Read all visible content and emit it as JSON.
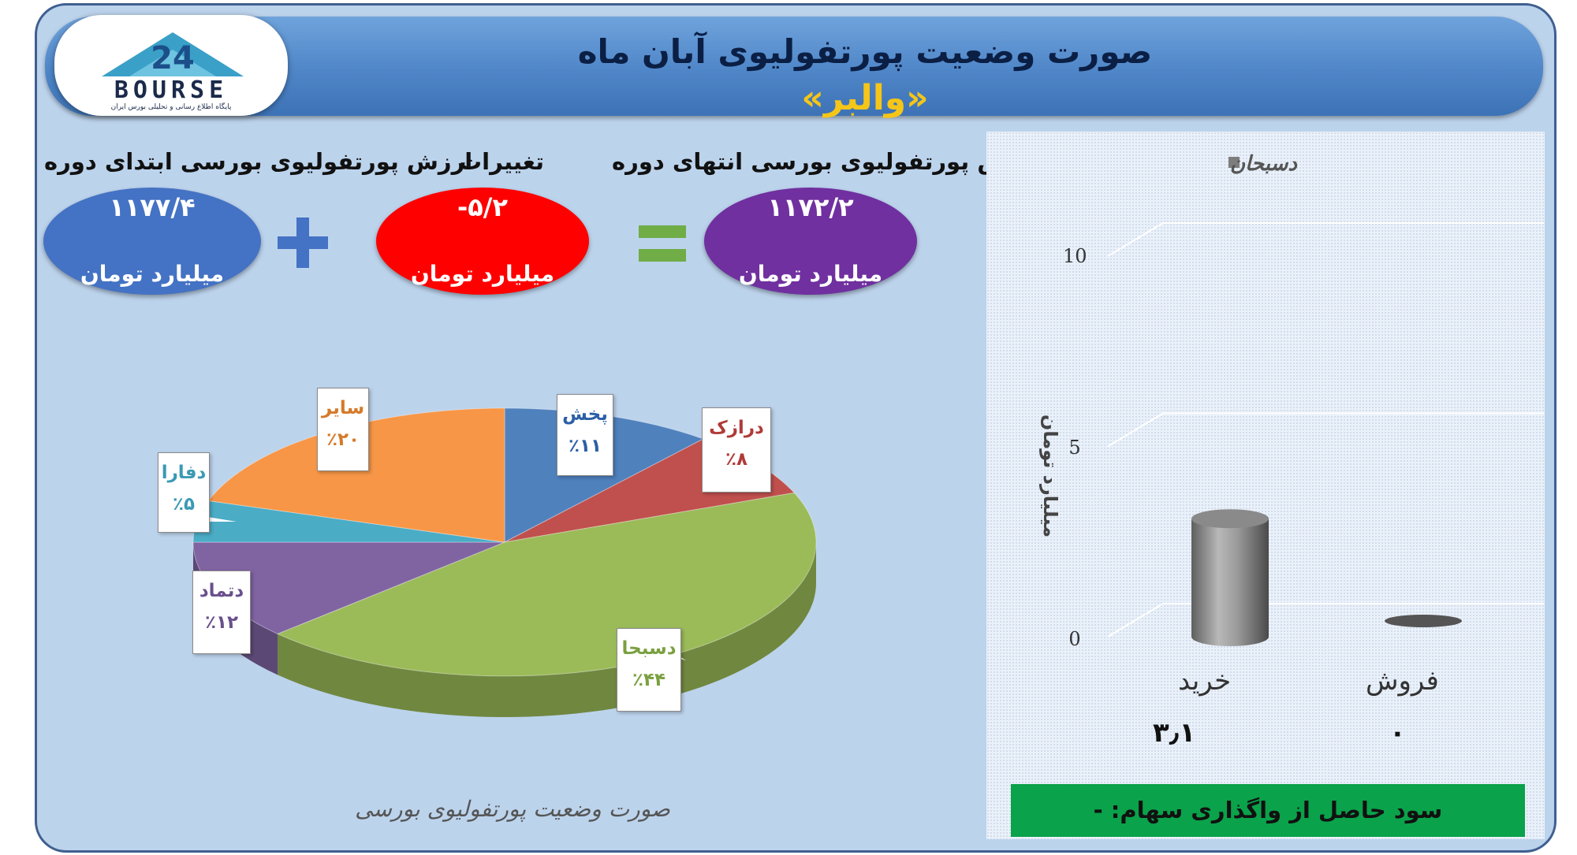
{
  "header": {
    "title": "صورت وضعیت پورتفولیوی آبان ماه",
    "subtitle": "«والبر»",
    "logo": {
      "text": "BOURSE",
      "tagline": "پایگاه اطلاع رسانی و تحلیلی بورس ایران"
    }
  },
  "summary": {
    "start": {
      "label": "ارزش پورتفولیوی بورسی ابتدای دوره",
      "value": "۱۱۷۷/۴",
      "unit": "میلیارد تومان"
    },
    "change": {
      "label": "تغییرات",
      "value": "-۵/۲",
      "unit": "میلیارد تومان"
    },
    "end": {
      "label": "ارزش پورتفولیوی بورسی انتهای دوره",
      "value": "۱۱۷۲/۲",
      "unit": "میلیارد تومان"
    },
    "op_plus": "+",
    "op_equal": "="
  },
  "colors": {
    "start": "#4472c4",
    "change": "#ff0000",
    "end": "#7030a0",
    "plus": "#4472c4",
    "equal": "#70ad47",
    "profit_bar": "#0aa24a"
  },
  "pie_caption": "صورت وضعیت پورتفولیوی بورسی",
  "bar_values_text": {
    "buy": "۳٫۱",
    "sell": "۰"
  },
  "profit": {
    "text": "سود حاصل از واگذاری سهام: -"
  },
  "chart_data": [
    {
      "type": "pie",
      "title": "صورت وضعیت پورتفولیوی بورسی",
      "slices": [
        {
          "name": "پخش",
          "value": 11,
          "label": "٪۱۱",
          "color": "#4f81bd"
        },
        {
          "name": "درازک",
          "value": 8,
          "label": "٪۸",
          "color": "#c0504d"
        },
        {
          "name": "دسبحا",
          "value": 44,
          "label": "٪۴۴",
          "color": "#9bbb59"
        },
        {
          "name": "دتماد",
          "value": 12,
          "label": "٪۱۲",
          "color": "#8064a2"
        },
        {
          "name": "دفارا",
          "value": 5,
          "label": "٪۵",
          "color": "#4bacc6"
        },
        {
          "name": "سایر",
          "value": 20,
          "label": "٪۲۰",
          "color": "#f79646"
        }
      ]
    },
    {
      "type": "bar",
      "categories": [
        "خرید",
        "فروش"
      ],
      "series": [
        {
          "name": "دسبحان",
          "values": [
            3.1,
            0
          ],
          "color": "#7d7d7d"
        }
      ],
      "ylabel": "میلیارد تومان",
      "ylim": [
        0,
        10
      ],
      "yticks": [
        0,
        5,
        10
      ],
      "legend": "top",
      "grid": true
    }
  ]
}
